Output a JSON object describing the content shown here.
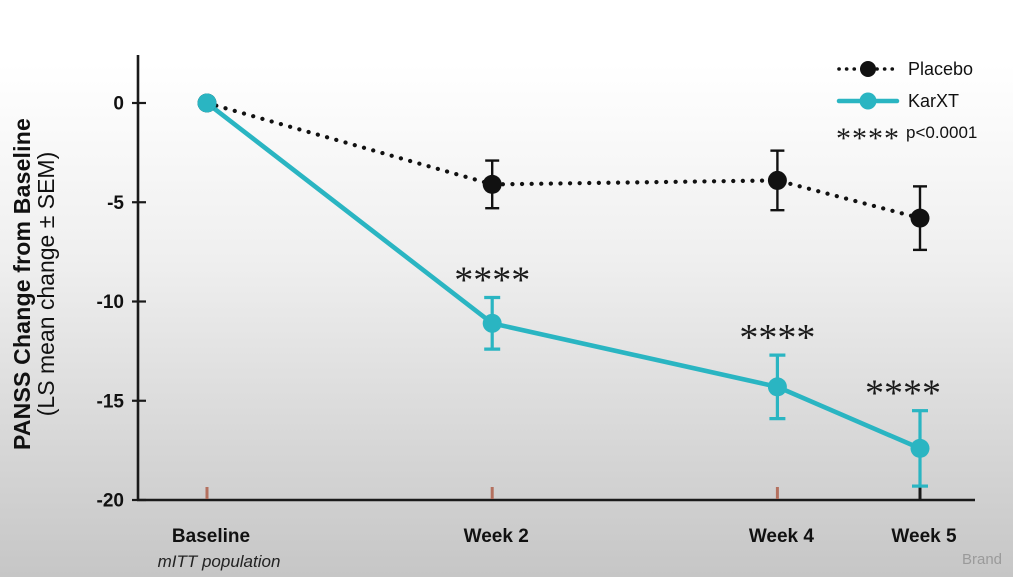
{
  "figure": {
    "watermark": "Brand"
  },
  "chart_data": {
    "type": "line",
    "title": "",
    "ylabel_line1": "PANSS Change from Baseline",
    "ylabel_line2": "(LS mean change ± SEM)",
    "categories": [
      "Baseline",
      "Week 2",
      "Week 4",
      "Week 5"
    ],
    "x_weeks": [
      0,
      2,
      4,
      5
    ],
    "ylim": [
      -20,
      0
    ],
    "y_ticks": [
      0,
      -5,
      -10,
      -15,
      -20
    ],
    "grid": false,
    "legend_position": "top-right",
    "footnote": "mITT population",
    "series": [
      {
        "name": "Placebo",
        "color": "#111111",
        "line_style": "dotted",
        "marker": "circle",
        "values": [
          0,
          -4.1,
          -3.9,
          -5.8
        ],
        "sem": [
          0,
          1.2,
          1.5,
          1.6
        ]
      },
      {
        "name": "KarXT",
        "color": "#2ab5c2",
        "line_style": "solid",
        "marker": "circle",
        "values": [
          0,
          -11.1,
          -14.3,
          -17.4
        ],
        "sem": [
          0,
          1.3,
          1.6,
          1.9
        ]
      }
    ],
    "significance": {
      "symbol": "****",
      "label": "p<0.0001"
    },
    "annotations": [
      {
        "series": "KarXT",
        "x_index": 1,
        "text": "****"
      },
      {
        "series": "KarXT",
        "x_index": 2,
        "text": "****"
      },
      {
        "series": "KarXT",
        "x_index": 3,
        "text": "****"
      }
    ],
    "x_tick_colors": [
      "#b4705e",
      "#b4705e",
      "#b4705e",
      "#1a1a1a"
    ],
    "axis_color": "#1a1a1a"
  }
}
